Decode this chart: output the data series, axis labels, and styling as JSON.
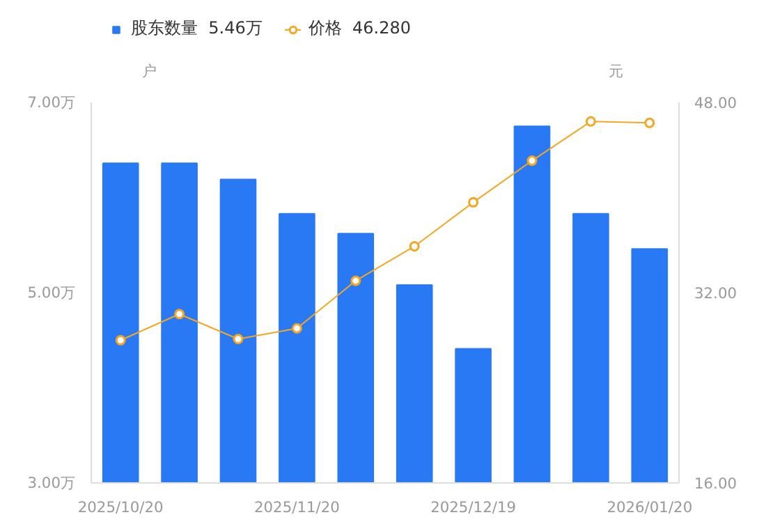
{
  "chart_data": {
    "type": "bar",
    "ylabel": "户",
    "y2label": "元",
    "categories": [
      "2025/10/20",
      null,
      null,
      "2025/11/20",
      null,
      null,
      "2025/12/19",
      null,
      null,
      "2026/01/20"
    ],
    "series": [
      {
        "name": "股东数量  5.46万",
        "color": "#2979f5",
        "values": [
          6.36,
          6.36,
          6.19,
          5.83,
          5.62,
          5.08,
          4.41,
          6.75,
          5.83,
          5.46
        ]
      },
      {
        "name": "价格  46.280",
        "type": "line",
        "axis": "y2",
        "color": "#f5a623",
        "marker": "circle",
        "values": [
          28.0,
          30.2,
          28.1,
          29.0,
          33.0,
          35.9,
          39.6,
          43.1,
          46.4,
          46.28
        ]
      }
    ],
    "ylim": [
      3,
      7
    ],
    "yticks": [
      {
        "value": 3,
        "label": "3.00万"
      },
      {
        "value": 5,
        "label": "5.00万"
      },
      {
        "value": 7,
        "label": "7.00万"
      }
    ],
    "y2lim": [
      16,
      48
    ],
    "y2ticks": [
      {
        "value": 16,
        "label": "16.00"
      },
      {
        "value": 32,
        "label": "32.00"
      },
      {
        "value": 48,
        "label": "48.00"
      }
    ],
    "grid": false,
    "legend": "top left"
  }
}
